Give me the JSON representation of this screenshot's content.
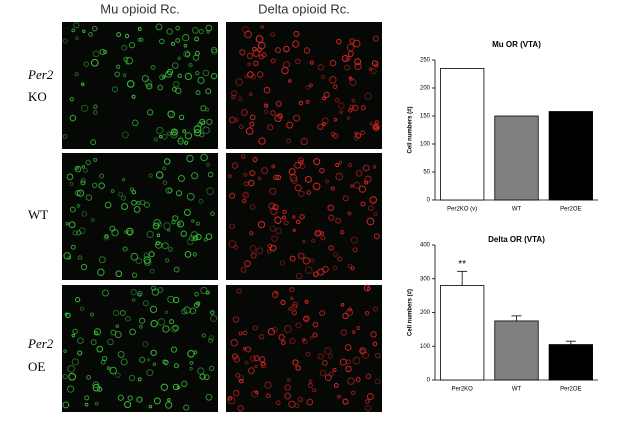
{
  "figure": {
    "column_labels": [
      "Mu opioid Rc.",
      "Delta opioid Rc."
    ],
    "row_labels": [
      [
        "Per2",
        "KO"
      ],
      [
        "WT"
      ],
      [
        "Per2",
        "OE"
      ]
    ]
  },
  "chart_data": [
    {
      "type": "bar",
      "title": "Mu OR (VTA)",
      "y_label": "Cell numbers (#)",
      "categories": [
        "Per2KO (v)",
        "WT",
        "Per2OE"
      ],
      "values": [
        235,
        150,
        158
      ],
      "colors": [
        "#ffffff",
        "#808080",
        "#000000"
      ],
      "ylim": [
        0,
        250
      ],
      "yticks": [
        0,
        50,
        100,
        150,
        200,
        250
      ]
    },
    {
      "type": "bar",
      "title": "Delta OR (VTA)",
      "y_label": "Cell numbers (#)",
      "categories": [
        "Per2KO",
        "WT",
        "Per2OE"
      ],
      "values": [
        280,
        175,
        105
      ],
      "errors": [
        42,
        15,
        10
      ],
      "colors": [
        "#ffffff",
        "#808080",
        "#000000"
      ],
      "ylim": [
        0,
        400
      ],
      "yticks": [
        0,
        100,
        200,
        300,
        400
      ],
      "annotation": "**"
    }
  ]
}
